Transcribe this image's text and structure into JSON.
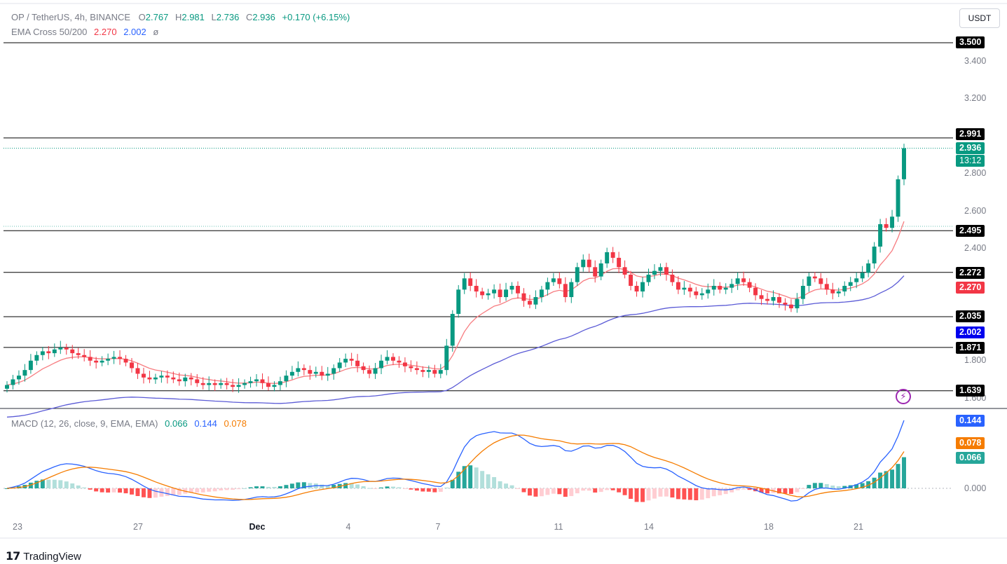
{
  "header": {
    "symbol": "OP / TetherUS, 4h, BINANCE",
    "o_label": "O",
    "o_value": "2.767",
    "h_label": "H",
    "h_value": "2.981",
    "l_label": "L",
    "l_value": "2.736",
    "c_label": "C",
    "c_value": "2.936",
    "change": "+0.170 (+6.15%)",
    "ema_name": "EMA Cross 50/200",
    "ema50": "2.270",
    "ema200": "2.002",
    "ema_extra": "ø",
    "currency": "USDT"
  },
  "macd_legend": {
    "name": "MACD (12, 26, close, 9, EMA, EMA)",
    "hist": "0.066",
    "macd": "0.144",
    "signal": "0.078"
  },
  "brand": {
    "name": "TradingView"
  },
  "colors": {
    "up": "#089981",
    "down": "#f23645",
    "ema50": "#f77c80",
    "ema200": "#5b5bd6",
    "macd": "#2962ff",
    "signal": "#f57c00",
    "hist_up": "#26a69a",
    "hist_up_light": "#b2dfdb",
    "hist_down": "#ff5252",
    "hist_down_light": "#ffcdd2"
  },
  "chart_data": [
    {
      "type": "candlestick",
      "title": "OP / TetherUS, 4h, BINANCE",
      "ylim": [
        1.6,
        3.65
      ],
      "y_ticks": [
        "3.400",
        "3.200",
        "2.800",
        "2.600",
        "2.400",
        "1.800",
        "1.600"
      ],
      "x_ticks": [
        "23",
        "27",
        "Dec",
        "4",
        "7",
        "11",
        "14",
        "18",
        "21"
      ],
      "last_price": "2.936",
      "countdown": "13:12",
      "price_tag": "2.936",
      "horizontal_levels": [
        {
          "value": 3.5,
          "label": "3.500"
        },
        {
          "value": 2.991,
          "label": "2.991"
        },
        {
          "value": 2.495,
          "label": "2.495"
        },
        {
          "value": 2.272,
          "label": "2.272"
        },
        {
          "value": 2.035,
          "label": "2.035"
        },
        {
          "value": 1.871,
          "label": "1.871"
        },
        {
          "value": 1.639,
          "label": "1.639"
        }
      ],
      "ema_tags": [
        {
          "name": "EMA 50",
          "value": "2.270"
        },
        {
          "name": "EMA 200",
          "value": "2.002"
        }
      ],
      "close_series": [
        1.67,
        1.7,
        1.72,
        1.75,
        1.8,
        1.83,
        1.85,
        1.84,
        1.86,
        1.87,
        1.86,
        1.84,
        1.83,
        1.82,
        1.8,
        1.79,
        1.8,
        1.81,
        1.82,
        1.81,
        1.79,
        1.76,
        1.73,
        1.71,
        1.7,
        1.71,
        1.72,
        1.71,
        1.7,
        1.69,
        1.71,
        1.7,
        1.68,
        1.67,
        1.68,
        1.67,
        1.68,
        1.67,
        1.66,
        1.67,
        1.68,
        1.69,
        1.7,
        1.68,
        1.66,
        1.67,
        1.69,
        1.72,
        1.74,
        1.76,
        1.75,
        1.73,
        1.74,
        1.72,
        1.73,
        1.76,
        1.79,
        1.81,
        1.8,
        1.77,
        1.75,
        1.73,
        1.76,
        1.8,
        1.82,
        1.8,
        1.79,
        1.77,
        1.76,
        1.75,
        1.74,
        1.75,
        1.73,
        1.75,
        1.88,
        2.05,
        2.18,
        2.24,
        2.2,
        2.17,
        2.15,
        2.16,
        2.18,
        2.14,
        2.18,
        2.2,
        2.16,
        2.12,
        2.1,
        2.14,
        2.18,
        2.22,
        2.24,
        2.21,
        2.14,
        2.22,
        2.3,
        2.34,
        2.3,
        2.25,
        2.32,
        2.38,
        2.35,
        2.3,
        2.26,
        2.2,
        2.17,
        2.22,
        2.26,
        2.28,
        2.3,
        2.26,
        2.22,
        2.18,
        2.19,
        2.17,
        2.15,
        2.16,
        2.18,
        2.2,
        2.18,
        2.19,
        2.21,
        2.24,
        2.22,
        2.19,
        2.15,
        2.13,
        2.12,
        2.14,
        2.11,
        2.1,
        2.08,
        2.13,
        2.2,
        2.25,
        2.24,
        2.21,
        2.18,
        2.16,
        2.17,
        2.2,
        2.22,
        2.24,
        2.27,
        2.32,
        2.41,
        2.53,
        2.51,
        2.57,
        2.77,
        2.936
      ]
    },
    {
      "type": "macd",
      "title": "MACD (12, 26, close, 9, EMA, EMA)",
      "ylim": [
        -0.04,
        0.16
      ],
      "y_ticks": [
        "0.000"
      ],
      "values": {
        "histogram": 0.066,
        "macd": 0.144,
        "signal": 0.078
      }
    }
  ]
}
